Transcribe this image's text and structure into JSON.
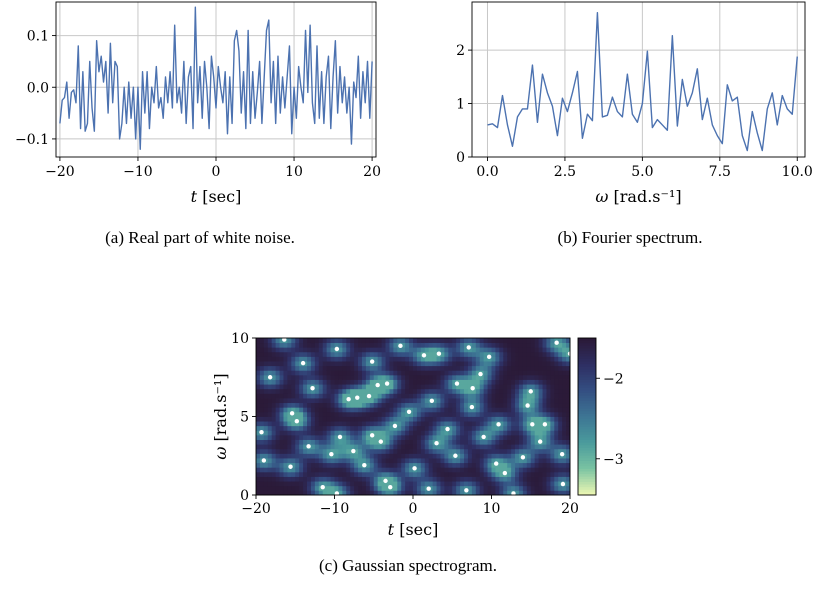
{
  "captions": {
    "a": "(a) Real part of white noise.",
    "b": "(b) Fourier spectrum.",
    "c": "(c) Gaussian spectrogram."
  },
  "chart_data": [
    {
      "type": "line",
      "xlabel": "t [sec]",
      "xlim": [
        -20.5,
        20.5
      ],
      "ylim": [
        -0.135,
        0.165
      ],
      "xticks": [
        -20,
        -10,
        0,
        10,
        20
      ],
      "xtick_labels": [
        "−20",
        "−10",
        "0",
        "10",
        "20"
      ],
      "yticks": [
        -0.1,
        0.0,
        0.1
      ],
      "ytick_labels": [
        "−0.1",
        "0.0",
        "0.1"
      ],
      "grid": true,
      "color": "#4c72b0",
      "x_start": -20,
      "x_end": 20,
      "values": [
        -0.07,
        -0.025,
        -0.02,
        0.01,
        -0.06,
        -0.01,
        -0.005,
        -0.03,
        0.08,
        -0.08,
        0.03,
        -0.085,
        -0.07,
        0.05,
        -0.04,
        -0.085,
        0.09,
        0.03,
        0.06,
        0.01,
        0.05,
        -0.05,
        0.085,
        -0.03,
        0.05,
        0.04,
        -0.1,
        -0.07,
        0.0,
        -0.07,
        0.01,
        -0.06,
        0.0,
        -0.1,
        0.0,
        -0.12,
        0.03,
        -0.05,
        0.03,
        -0.08,
        0.0,
        -0.03,
        0.04,
        -0.04,
        -0.02,
        -0.06,
        0.02,
        -0.03,
        0.03,
        -0.04,
        0.12,
        -0.03,
        0.0,
        -0.05,
        0.05,
        -0.07,
        0.02,
        0.04,
        -0.08,
        0.155,
        -0.03,
        0.04,
        -0.06,
        0.05,
        0.0,
        -0.08,
        0.06,
        0.02,
        -0.04,
        0.04,
        0.0,
        -0.03,
        0.03,
        -0.09,
        0.02,
        -0.07,
        0.09,
        0.11,
        0.07,
        -0.05,
        0.03,
        -0.08,
        0.11,
        -0.07,
        0.03,
        -0.06,
        -0.01,
        0.05,
        -0.07,
        0.02,
        0.11,
        0.13,
        -0.03,
        0.05,
        -0.07,
        0.06,
        -0.05,
        0.02,
        -0.04,
        0.02,
        0.08,
        -0.09,
        0.0,
        -0.06,
        0.04,
        0.0,
        -0.03,
        0.11,
        -0.01,
        0.12,
        -0.03,
        -0.07,
        0.08,
        -0.06,
        0.03,
        -0.07,
        0.02,
        0.06,
        -0.08,
        0.02,
        0.09,
        -0.05,
        0.04,
        -0.03,
        0.02,
        -0.05,
        0.0,
        -0.11,
        0.01,
        -0.02,
        0.06,
        -0.06,
        0.03,
        -0.03,
        0.05,
        -0.06,
        0.05
      ]
    },
    {
      "type": "line",
      "xlabel": "ω [rad.s⁻¹]",
      "xlim": [
        -0.5,
        10.25
      ],
      "ylim": [
        0,
        2.9
      ],
      "xticks": [
        0,
        2.5,
        5,
        7.5,
        10
      ],
      "xtick_labels": [
        "0.0",
        "2.5",
        "5.0",
        "7.5",
        "10.0"
      ],
      "yticks": [
        0,
        1,
        2
      ],
      "ytick_labels": [
        "0",
        "1",
        "2"
      ],
      "grid": true,
      "color": "#4c72b0",
      "x_start": 0,
      "x_end": 10,
      "values": [
        0.6,
        0.62,
        0.55,
        1.15,
        0.6,
        0.2,
        0.75,
        0.9,
        0.9,
        1.72,
        0.65,
        1.55,
        1.2,
        0.95,
        0.4,
        1.1,
        0.85,
        1.2,
        1.6,
        0.35,
        0.8,
        0.68,
        2.7,
        0.75,
        0.78,
        1.12,
        0.85,
        0.75,
        1.55,
        0.8,
        0.65,
        1.0,
        1.98,
        0.55,
        0.7,
        0.6,
        0.5,
        2.27,
        0.58,
        1.45,
        0.95,
        1.2,
        1.65,
        0.7,
        1.1,
        0.6,
        0.4,
        0.25,
        1.35,
        1.05,
        1.12,
        0.4,
        0.12,
        0.85,
        0.45,
        0.12,
        0.9,
        1.2,
        0.6,
        1.15,
        0.9,
        0.8,
        1.88
      ]
    },
    {
      "type": "heatmap",
      "xlabel": "t [sec]",
      "ylabel": "ω [rad.s⁻¹]",
      "xlim": [
        -20,
        20
      ],
      "ylim": [
        0,
        10
      ],
      "xticks": [
        -20,
        -10,
        0,
        10,
        20
      ],
      "xtick_labels": [
        "−20",
        "−10",
        "0",
        "10",
        "20"
      ],
      "yticks": [
        0,
        5,
        10
      ],
      "ytick_labels": [
        "0",
        "5",
        "10"
      ],
      "colorbar": {
        "ticks": [
          -2,
          -3
        ],
        "tick_labels": [
          "−2",
          "−3"
        ],
        "range": [
          -3.45,
          -1.5
        ],
        "colors": [
          "#2b1a38",
          "#2e2f63",
          "#344f82",
          "#3d7594",
          "#4a9a9c",
          "#78c2a2",
          "#e8f5b2"
        ]
      },
      "points_color": "#ffffff",
      "points": [
        [
          -19.3,
          4.0
        ],
        [
          -18.2,
          7.5
        ],
        [
          -19.0,
          2.2
        ],
        [
          -16.4,
          9.9
        ],
        [
          -14.0,
          8.4
        ],
        [
          -15.4,
          5.2
        ],
        [
          -15.6,
          1.8
        ],
        [
          -14.8,
          4.7
        ],
        [
          -13.3,
          3.1
        ],
        [
          -12.8,
          6.8
        ],
        [
          -11.5,
          0.5
        ],
        [
          -10.4,
          2.6
        ],
        [
          -9.7,
          9.3
        ],
        [
          -9.7,
          0.1
        ],
        [
          -9.3,
          3.7
        ],
        [
          -8.2,
          6.1
        ],
        [
          -7.1,
          6.2
        ],
        [
          -7.6,
          2.8
        ],
        [
          -6.2,
          1.9
        ],
        [
          -5.6,
          6.3
        ],
        [
          -5.2,
          8.5
        ],
        [
          -5.2,
          3.8
        ],
        [
          -4.5,
          7.0
        ],
        [
          -4.1,
          3.4
        ],
        [
          -3.5,
          0.9
        ],
        [
          -3.3,
          7.1
        ],
        [
          -2.9,
          0.5
        ],
        [
          -2.3,
          4.4
        ],
        [
          -1.6,
          9.5
        ],
        [
          -0.5,
          5.3
        ],
        [
          1.4,
          8.9
        ],
        [
          0.2,
          1.7
        ],
        [
          2.0,
          0.4
        ],
        [
          2.4,
          6.0
        ],
        [
          3.0,
          3.3
        ],
        [
          3.3,
          9.0
        ],
        [
          4.4,
          4.2
        ],
        [
          5.6,
          7.1
        ],
        [
          5.4,
          2.5
        ],
        [
          6.8,
          0.3
        ],
        [
          7.1,
          9.4
        ],
        [
          7.6,
          6.8
        ],
        [
          7.5,
          5.6
        ],
        [
          8.6,
          7.7
        ],
        [
          9.0,
          3.7
        ],
        [
          9.7,
          8.8
        ],
        [
          10.6,
          2.0
        ],
        [
          10.9,
          4.5
        ],
        [
          11.7,
          1.4
        ],
        [
          12.8,
          0.1
        ],
        [
          14.0,
          2.4
        ],
        [
          14.6,
          5.7
        ],
        [
          15.2,
          4.5
        ],
        [
          16.2,
          3.4
        ],
        [
          15.0,
          6.6
        ],
        [
          16.8,
          4.5
        ],
        [
          18.3,
          9.7
        ],
        [
          19.1,
          0.7
        ],
        [
          19.0,
          2.6
        ],
        [
          20.0,
          9.0
        ]
      ]
    }
  ]
}
